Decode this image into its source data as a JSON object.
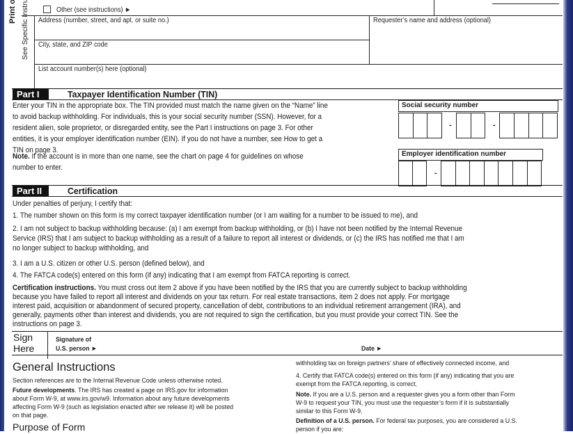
{
  "side_labels": {
    "print": "Print or type",
    "see": "See Specific Instructions"
  },
  "top": {
    "other_label": "Other (see instructions) ►",
    "address_label": "Address (number, street, and apt. or suite no.)",
    "requester_label": "Requester’s name and address (optional)",
    "city_label": "City, state, and ZIP code",
    "account_label": "List account number(s) here (optional)"
  },
  "part1": {
    "tag": "Part I",
    "title": "Taxpayer Identification Number (TIN)",
    "lines": [
      {
        "bold": "",
        "text": "Enter your TIN in the appropriate box. The TIN provided must match the name given on the “Name” line"
      },
      {
        "bold": "",
        "text": "to avoid backup withholding. For individuals, this is your social security number (SSN). However, for a"
      },
      {
        "bold": "",
        "text": "resident alien, sole proprietor, or disregarded entity, see the Part I instructions on page 3. For other"
      },
      {
        "bold": "",
        "text": "entities, it is your employer identification number (EIN). If you do not have a number, see How to get a"
      },
      {
        "bold": "",
        "text": "TIN on page 3."
      }
    ],
    "note_lines": [
      {
        "bold": "Note.",
        "text": " If the account is in more than one name, see the chart on page 4 for guidelines on whose"
      },
      {
        "bold": "",
        "text": "number to enter."
      }
    ],
    "ssn_label": "Social security number",
    "ein_label": "Employer identification number",
    "dash": "-"
  },
  "part2": {
    "tag": "Part II",
    "title": "Certification",
    "lines": [
      {
        "bold": "",
        "text": "Under penalties of perjury, I certify that:"
      },
      {
        "bold": "",
        "text": "1.  The number shown on this form is my correct taxpayer identification number (or I am waiting for a number to be issued to me), and"
      },
      {
        "bold": "",
        "text": "2.  I am not subject to backup withholding because: (a) I am exempt from backup withholding, or (b) I have not been notified by the Internal Revenue"
      },
      {
        "bold": "",
        "text": "     Service (IRS) that I am subject to backup withholding as a result of a failure to report all interest or dividends, or (c) the IRS has notified me that I am"
      },
      {
        "bold": "",
        "text": "     no longer subject to backup withholding, and"
      },
      {
        "bold": "",
        "text": "3.  I am a U.S. citizen or other U.S. person (defined below), and"
      },
      {
        "bold": "",
        "text": "4.  The FATCA code(s) entered on this form (if any) indicating that I am exempt from FATCA reporting is correct."
      },
      {
        "bold": "Certification instructions.",
        "text": " You must cross out item 2 above if you have been notified by the IRS that you are currently subject to backup withholding"
      },
      {
        "bold": "",
        "text": "because you have failed to report all interest and dividends on your tax return. For real estate transactions, item 2 does not apply. For mortgage"
      },
      {
        "bold": "",
        "text": "interest paid, acquisition or abandonment of secured property, cancellation of debt, contributions to an individual retirement arrangement (IRA), and"
      },
      {
        "bold": "",
        "text": "generally, payments other than interest and dividends, you are not required to sign the certification, but you must provide your correct TIN. See the"
      },
      {
        "bold": "",
        "text": "instructions on page 3."
      }
    ]
  },
  "sign": {
    "sign": "Sign",
    "here": "Here",
    "sig_line1": "Signature of",
    "sig_line2": "U.S. person ►",
    "date": "Date ►"
  },
  "general": {
    "title": "General Instructions",
    "left_lines": [
      {
        "bold": "",
        "text": "Section references are to the Internal Revenue Code unless otherwise noted."
      },
      {
        "bold": "Future developments",
        "text": ". The IRS has created a page on IRS.gov for information"
      },
      {
        "bold": "",
        "text": "about Form W-9, at www.irs.gov/w9. Information about any future developments"
      },
      {
        "bold": "",
        "text": "affecting Form W-9 (such as legislation enacted after we release it) will be posted"
      },
      {
        "bold": "",
        "text": "on that page."
      }
    ],
    "purpose_title": "Purpose of Form",
    "right_lines": [
      {
        "bold": "",
        "text": "withholding tax on foreign partners’ share of effectively connected income, and"
      },
      {
        "bold": "",
        "text": "   4. Certify that FATCA code(s) entered on this form (if any) indicating that you are"
      },
      {
        "bold": "",
        "text": "exempt from the FATCA reporting, is correct."
      },
      {
        "bold": "Note.",
        "text": " If you are a U.S. person and a requester gives you a form other than Form"
      },
      {
        "bold": "",
        "text": "W-9 to request your TIN, you must use the requester’s form if it is substantially"
      },
      {
        "bold": "",
        "text": "similar to this Form W-9."
      },
      {
        "bold": "Definition of a U.S. person.",
        "text": " For federal tax purposes, you are considered a U.S."
      },
      {
        "bold": "",
        "text": "person if you are:"
      }
    ]
  }
}
